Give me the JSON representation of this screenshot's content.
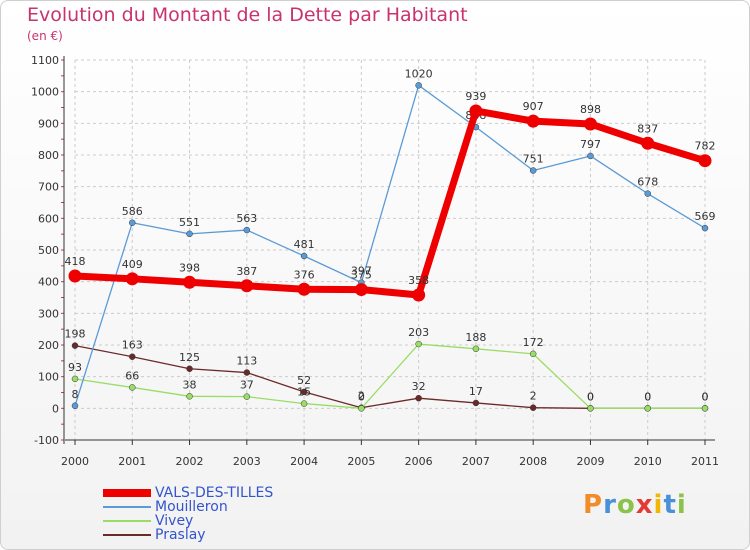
{
  "title": "Evolution du Montant de la Dette par Habitant",
  "unit": "(en €)",
  "logo_text": "Proxiti",
  "colors": {
    "title": "#c8336e",
    "grid": "#cccccc",
    "axis": "#333333"
  },
  "chart_data": {
    "type": "line",
    "title": "Evolution du Montant de la Dette par Habitant",
    "subtitle": "(en €)",
    "x": [
      "2000",
      "2001",
      "2002",
      "2003",
      "2004",
      "2005",
      "2006",
      "2007",
      "2008",
      "2009",
      "2010",
      "2011"
    ],
    "ylim": [
      -100,
      1100
    ],
    "yticks": [
      -100,
      0,
      100,
      200,
      300,
      400,
      500,
      600,
      700,
      800,
      900,
      1000,
      1100
    ],
    "grid": true,
    "legend_position": "bottom-left",
    "series": [
      {
        "name": "VALS-DES-TILLES",
        "color": "#ee0000",
        "values": [
          418,
          409,
          398,
          387,
          376,
          375,
          358,
          939,
          907,
          898,
          837,
          782
        ]
      },
      {
        "name": "Mouilleron",
        "color": "#5b9bd5",
        "values": [
          8,
          586,
          551,
          563,
          481,
          397,
          1020,
          888,
          751,
          797,
          678,
          569
        ]
      },
      {
        "name": "Vivey",
        "color": "#99dd66",
        "values": [
          93,
          66,
          38,
          37,
          15,
          0,
          203,
          188,
          172,
          0,
          0,
          0
        ]
      },
      {
        "name": "Praslay",
        "color": "#6b2a2a",
        "values": [
          198,
          163,
          125,
          113,
          52,
          2,
          32,
          17,
          2,
          0,
          0,
          0
        ]
      }
    ]
  }
}
